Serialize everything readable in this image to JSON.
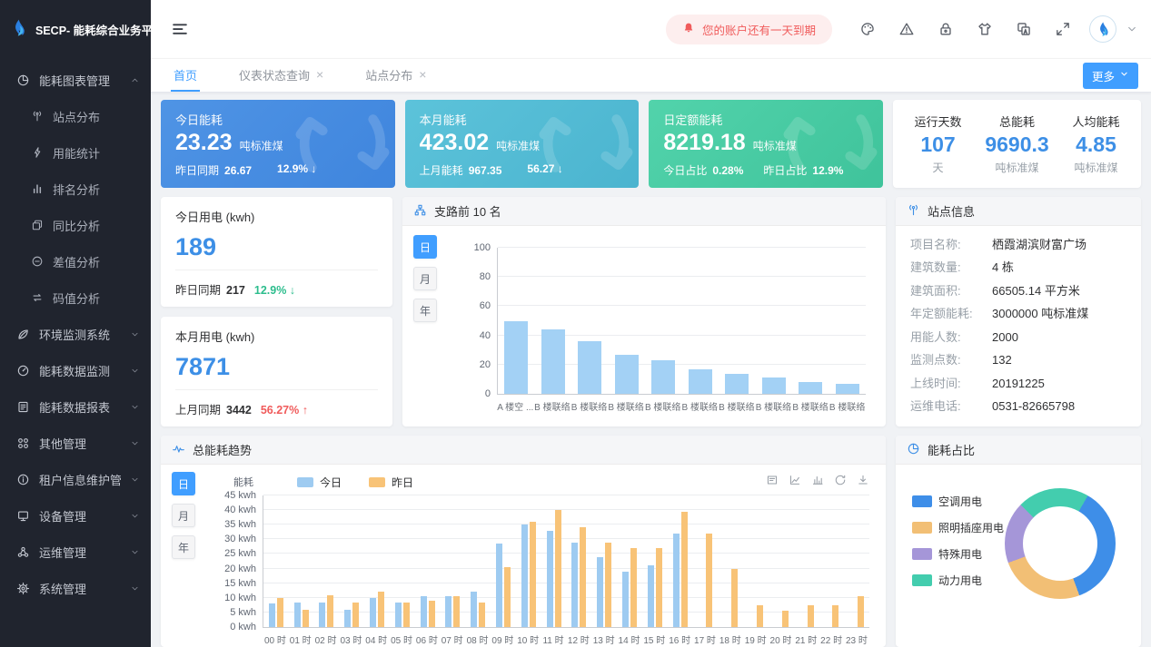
{
  "colors": {
    "accent": "#409eff",
    "number_blue": "#3d8fe6",
    "green": "#2dbd8d",
    "red": "#f05b5b"
  },
  "sidebar": {
    "logo_title": "SECP- 能耗综合业务平台",
    "logo_icon": "flame-icon",
    "menu": [
      {
        "label": "能耗图表管理",
        "icon": "pie-chart-icon",
        "expanded": true,
        "children": [
          {
            "label": "站点分布",
            "icon": "antenna-icon"
          },
          {
            "label": "用能统计",
            "icon": "lightning-icon"
          },
          {
            "label": "排名分析",
            "icon": "ranking-icon"
          },
          {
            "label": "同比分析",
            "icon": "compare-icon"
          },
          {
            "label": "差值分析",
            "icon": "minus-circle-icon"
          },
          {
            "label": "码值分析",
            "icon": "swap-icon"
          }
        ]
      },
      {
        "label": "环境监测系统",
        "icon": "leaf-icon"
      },
      {
        "label": "能耗数据监测",
        "icon": "gauge-icon"
      },
      {
        "label": "能耗数据报表",
        "icon": "report-icon"
      },
      {
        "label": "其他管理",
        "icon": "grid-icon"
      },
      {
        "label": "租户信息维护管理",
        "icon": "info-icon"
      },
      {
        "label": "设备管理",
        "icon": "device-icon"
      },
      {
        "label": "运维管理",
        "icon": "ops-icon"
      },
      {
        "label": "系统管理",
        "icon": "gear-icon"
      }
    ]
  },
  "header": {
    "collapse_icon": "menu-list-icon",
    "notification": "您的账户还有一天到期",
    "notification_icon": "bell-icon",
    "action_icons": [
      "palette-icon",
      "warning-icon",
      "lock-icon",
      "shirt-icon",
      "translate-icon",
      "fullscreen-icon"
    ],
    "avatar_icon": "flame-icon",
    "caret_icon": "chevron-down-icon"
  },
  "tabs": {
    "items": [
      {
        "label": "首页",
        "closable": false,
        "active": true
      },
      {
        "label": "仪表状态查询",
        "closable": true,
        "active": false
      },
      {
        "label": "站点分布",
        "closable": true,
        "active": false
      }
    ],
    "more_label": "更多"
  },
  "kpi_cards": [
    {
      "title": "今日能耗",
      "value": "23.23",
      "unit": "吨标准煤",
      "color_from": "#4f94e5",
      "color_to": "#3f85dd",
      "footer": [
        {
          "label": "昨日同期",
          "value": "26.67"
        },
        {
          "label": "",
          "value": "12.9% ↓"
        }
      ]
    },
    {
      "title": "本月能耗",
      "value": "423.02",
      "unit": "吨标准煤",
      "color_from": "#5cc3da",
      "color_to": "#4bb4cf",
      "footer": [
        {
          "label": "上月能耗",
          "value": "967.35"
        },
        {
          "label": "",
          "value": "56.27 ↓"
        }
      ]
    },
    {
      "title": "日定额能耗",
      "value": "8219.18",
      "unit": "吨标准煤",
      "color_from": "#52d3ab",
      "color_to": "#3fc39b",
      "footer": [
        {
          "label": "今日占比",
          "value": "0.28%"
        },
        {
          "label": "昨日占比",
          "value": "12.9%"
        }
      ]
    }
  ],
  "stats_card": {
    "items": [
      {
        "label": "运行天数",
        "value": "107",
        "unit": "天"
      },
      {
        "label": "总能耗",
        "value": "9690.3",
        "unit": "吨标准煤"
      },
      {
        "label": "人均能耗",
        "value": "4.85",
        "unit": "吨标准煤"
      }
    ]
  },
  "usage_cards": [
    {
      "title": "今日用电 (kwh)",
      "value": "189",
      "footer_label": "昨日同期",
      "footer_value": "217",
      "delta": "12.9% ↓",
      "delta_color": "green"
    },
    {
      "title": "本月用电 (kwh)",
      "value": "7871",
      "footer_label": "上月同期",
      "footer_value": "3442",
      "delta": "56.27% ↑",
      "delta_color": "red"
    }
  ],
  "branch_panel": {
    "icon": "branch-icon",
    "toggles": [
      "日",
      "月",
      "年"
    ],
    "active_toggle": 0
  },
  "site_info": {
    "title": "站点信息",
    "icon": "antenna-icon",
    "rows": [
      {
        "label": "项目名称:",
        "value": "栖霞湖滨财富广场"
      },
      {
        "label": "建筑数量:",
        "value": "4 栋"
      },
      {
        "label": "建筑面积:",
        "value": "66505.14 平方米"
      },
      {
        "label": "年定额能耗:",
        "value": "3000000 吨标准煤"
      },
      {
        "label": "用能人数:",
        "value": "2000"
      },
      {
        "label": "监测点数:",
        "value": "132"
      },
      {
        "label": "上线时间:",
        "value": "20191225"
      },
      {
        "label": "运维电话:",
        "value": "0531-82665798"
      }
    ]
  },
  "trend_panel": {
    "icon": "pulse-icon",
    "toggles": [
      "日",
      "月",
      "年"
    ],
    "active_toggle": 0,
    "toolbar": [
      "dataview-icon",
      "linechart-icon",
      "barchart-icon",
      "refresh-icon",
      "download-icon"
    ]
  },
  "donut_panel": {
    "icon": "clock-pie-icon"
  },
  "chart_data": [
    {
      "id": "branch",
      "type": "bar",
      "title": "支路前 10 名",
      "bar_color": "#a3d1f5",
      "categories": [
        "A 楼空 ...",
        "B 楼联络",
        "B 楼联络",
        "B 楼联络",
        "B 楼联络",
        "B 楼联络",
        "B 楼联络",
        "B 楼联络",
        "B 楼联络",
        "B 楼联络"
      ],
      "values": [
        50,
        44,
        36,
        27,
        23,
        17,
        13.5,
        11,
        8,
        7
      ],
      "ylim": [
        0,
        100
      ],
      "ytick_step": 20,
      "grid": true,
      "legend": false
    },
    {
      "id": "trend",
      "type": "bar",
      "title": "总能耗趋势",
      "ylabel": "能耗",
      "y_unit": "kwh",
      "categories": [
        "00 时",
        "01 时",
        "02 时",
        "03 时",
        "04 时",
        "05 时",
        "06 时",
        "07 时",
        "08 时",
        "09 时",
        "10 时",
        "11 时",
        "12 时",
        "13 时",
        "14 时",
        "15 时",
        "16 时",
        "17 时",
        "18 时",
        "19 时",
        "20 时",
        "21 时",
        "22 时",
        "23 时"
      ],
      "series": [
        {
          "name": "今日",
          "color": "#9ecbf1",
          "values": [
            8,
            8.5,
            8.5,
            6,
            10,
            8.5,
            10.5,
            10.5,
            12,
            28.5,
            35,
            33,
            29,
            24,
            19,
            21,
            32,
            0,
            0,
            0,
            0,
            0,
            0,
            0
          ]
        },
        {
          "name": "昨日",
          "color": "#f8c377",
          "values": [
            10,
            6,
            11,
            8.5,
            12,
            8.5,
            9,
            10.5,
            8.5,
            20.5,
            36,
            40,
            34,
            29,
            27,
            27,
            39.5,
            32,
            20,
            7.5,
            5.5,
            7.5,
            7.5,
            10.5
          ]
        }
      ],
      "ylim": [
        0,
        45
      ],
      "ytick_step": 5,
      "grid": true,
      "legend_position": "top"
    },
    {
      "id": "donut",
      "type": "pie",
      "title": "能耗占比",
      "start_angle_deg": 30,
      "slices": [
        {
          "label": "空调用电",
          "value": 36,
          "color": "#3e8ee8"
        },
        {
          "label": "照明插座用电",
          "value": 25,
          "color": "#f2bf75"
        },
        {
          "label": "特殊用电",
          "value": 18,
          "color": "#a596d8"
        },
        {
          "label": "动力用电",
          "value": 21,
          "color": "#43cdae"
        }
      ]
    }
  ]
}
